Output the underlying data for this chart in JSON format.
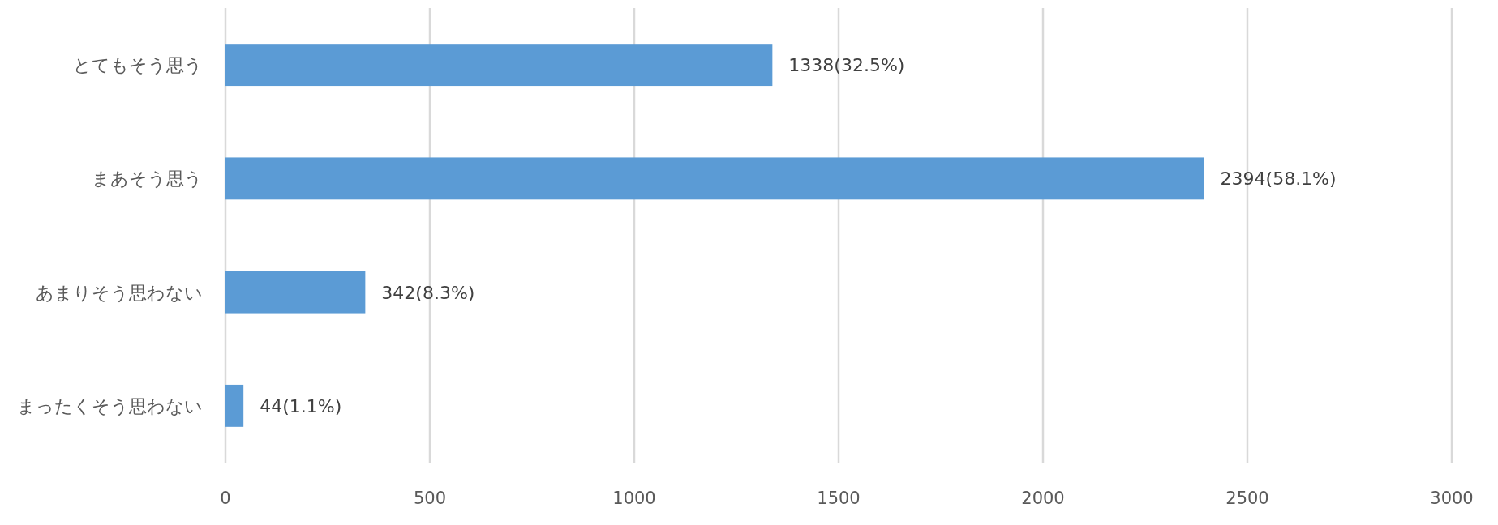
{
  "chart_data": {
    "type": "bar",
    "orientation": "horizontal",
    "categories": [
      "とてもそう思う",
      "まあそう思う",
      "あまりそう思わない",
      "まったくそう思わない"
    ],
    "values": [
      1338,
      2394,
      342,
      44
    ],
    "value_labels": [
      "1338(32.5%)",
      "2394(58.1%)",
      "342(8.3%)",
      "44(1.1%)"
    ],
    "color": "#5b9bd5",
    "xlim": [
      0,
      3000
    ],
    "xticks": [
      0,
      500,
      1000,
      1500,
      2000,
      2500,
      3000
    ],
    "grid": "x"
  }
}
